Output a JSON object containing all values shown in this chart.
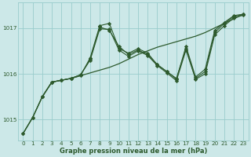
{
  "background_color": "#cce8e8",
  "grid_color": "#99cccc",
  "line_color": "#2d5a2d",
  "marker_color": "#2d5a2d",
  "xlabel": "Graphe pression niveau de la mer (hPa)",
  "xlim_min": -0.5,
  "xlim_max": 23.5,
  "ylim_min": 1014.55,
  "ylim_max": 1017.55,
  "yticks": [
    1015,
    1016,
    1017
  ],
  "xticks": [
    0,
    1,
    2,
    3,
    4,
    5,
    6,
    7,
    8,
    9,
    10,
    11,
    12,
    13,
    14,
    15,
    16,
    17,
    18,
    19,
    20,
    21,
    22,
    23
  ],
  "series1_x": [
    0,
    1,
    2,
    3,
    4,
    5,
    6,
    7,
    8,
    9,
    10,
    11,
    12,
    13,
    14,
    15,
    16,
    17,
    18,
    19,
    20,
    21,
    22,
    23
  ],
  "series1_y": [
    1014.7,
    1015.05,
    1015.5,
    1015.82,
    1015.86,
    1015.9,
    1015.96,
    1016.02,
    1016.08,
    1016.14,
    1016.22,
    1016.32,
    1016.42,
    1016.5,
    1016.58,
    1016.64,
    1016.7,
    1016.76,
    1016.82,
    1016.9,
    1017.0,
    1017.1,
    1017.2,
    1017.3
  ],
  "series2_x": [
    0,
    1,
    2,
    3,
    4,
    5,
    6,
    7,
    8,
    9,
    10,
    11,
    12,
    13,
    14,
    15,
    16,
    17,
    18,
    19,
    20,
    21,
    22,
    23
  ],
  "series2_y": [
    1014.7,
    1015.05,
    1015.5,
    1015.82,
    1015.86,
    1015.9,
    1015.96,
    1016.35,
    1017.05,
    1017.1,
    1016.55,
    1016.45,
    1016.55,
    1016.45,
    1016.2,
    1016.05,
    1015.9,
    1016.55,
    1015.9,
    1016.05,
    1016.9,
    1017.1,
    1017.25,
    1017.3
  ],
  "series3_x": [
    0,
    1,
    2,
    3,
    4,
    5,
    6,
    7,
    8,
    9,
    10,
    11,
    12,
    13,
    14,
    15,
    16,
    17,
    18,
    19,
    20,
    21,
    22,
    23
  ],
  "series3_y": [
    1014.7,
    1015.05,
    1015.5,
    1015.82,
    1015.86,
    1015.9,
    1015.98,
    1016.32,
    1017.02,
    1016.95,
    1016.6,
    1016.42,
    1016.52,
    1016.42,
    1016.2,
    1016.05,
    1015.88,
    1016.6,
    1015.93,
    1016.1,
    1016.95,
    1017.12,
    1017.27,
    1017.3
  ],
  "series4_x": [
    2,
    3,
    4,
    5,
    6,
    7,
    8,
    9,
    10,
    11,
    12,
    13,
    14,
    15,
    16,
    17,
    18,
    19,
    20,
    21,
    22,
    23
  ],
  "series4_y": [
    1015.5,
    1015.82,
    1015.86,
    1015.9,
    1015.98,
    1016.3,
    1016.98,
    1016.97,
    1016.52,
    1016.38,
    1016.5,
    1016.4,
    1016.18,
    1016.02,
    1015.85,
    1016.52,
    1015.88,
    1016.0,
    1016.85,
    1017.05,
    1017.22,
    1017.28
  ]
}
